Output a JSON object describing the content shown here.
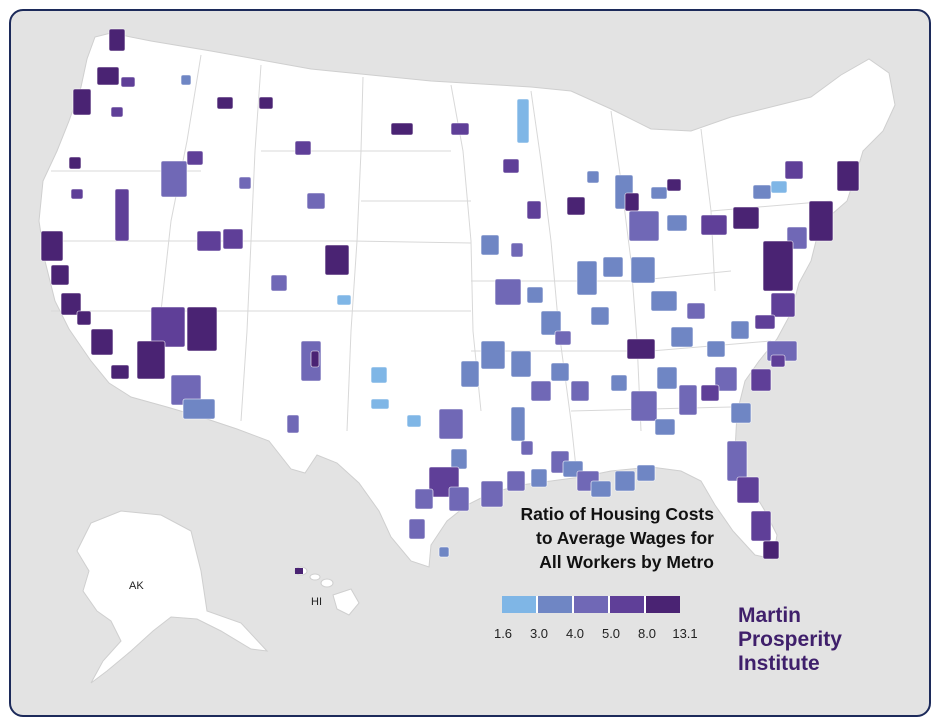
{
  "title_lines": [
    "Ratio of Housing Costs",
    "to Average Wages for",
    "All Workers by Metro"
  ],
  "legend": {
    "breaks": [
      "1.6",
      "3.0",
      "4.0",
      "5.0",
      "8.0",
      "13.1"
    ],
    "colors": [
      "#7fb6e6",
      "#6f86c4",
      "#7068b6",
      "#5f3f98",
      "#4a2373"
    ]
  },
  "inset_labels": {
    "alaska": "AK",
    "hawaii": "HI"
  },
  "logo_lines": [
    "Martin",
    "Prosperity",
    "Institute"
  ],
  "colors": {
    "background": "#e3e3e3",
    "land": "#ffffff",
    "border": "#1c2a5a",
    "logo": "#3f1f6b"
  }
}
